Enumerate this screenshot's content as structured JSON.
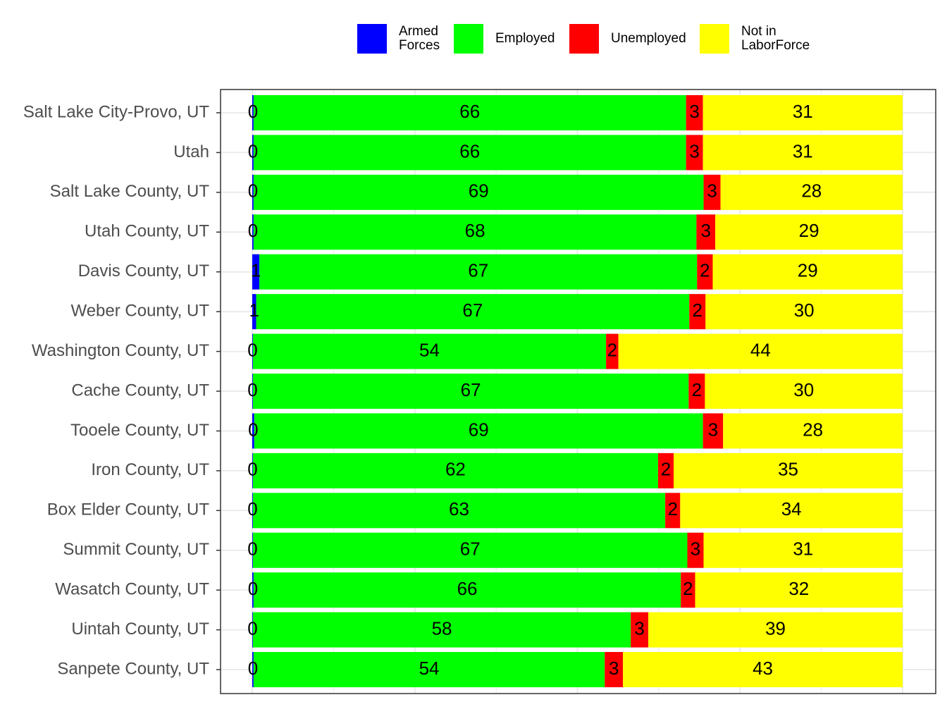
{
  "chart_data": {
    "type": "bar",
    "orientation": "horizontal",
    "stacked": true,
    "normalized_percent": true,
    "title": "",
    "xlabel": "",
    "ylabel": "",
    "xlim": [
      0,
      100
    ],
    "grid": true,
    "legend_position": "top",
    "categories": [
      "Salt Lake City-Provo, UT",
      "Utah",
      "Salt Lake County, UT",
      "Utah County, UT",
      "Davis County, UT",
      "Weber County, UT",
      "Washington County, UT",
      "Cache County, UT",
      "Tooele County, UT",
      "Iron County, UT",
      "Box Elder County, UT",
      "Summit County, UT",
      "Wasatch County, UT",
      "Uintah County, UT",
      "Sanpete County, UT"
    ],
    "series": [
      {
        "name": "Armed Forces",
        "legend_lines": [
          "Armed",
          "Forces"
        ],
        "color": "#0000ff",
        "values": [
          0.2,
          0.2,
          0.2,
          0.2,
          1.1,
          0.6,
          0.1,
          0.1,
          0.3,
          0.1,
          0.1,
          0.1,
          0.2,
          0.1,
          0.2
        ],
        "labels": [
          "0",
          "0",
          "0",
          "0",
          "1",
          "1",
          "0",
          "0",
          "0",
          "0",
          "0",
          "0",
          "0",
          "0",
          "0"
        ]
      },
      {
        "name": "Employed",
        "legend_lines": [
          "Employed"
        ],
        "color": "#00ff00",
        "values": [
          66.5,
          66.5,
          69.2,
          68.1,
          67.3,
          66.6,
          54.3,
          67.0,
          69.0,
          62.3,
          63.4,
          66.8,
          65.7,
          58.1,
          54.0
        ],
        "labels": [
          "66",
          "66",
          "69",
          "68",
          "67",
          "67",
          "54",
          "67",
          "69",
          "62",
          "63",
          "67",
          "66",
          "58",
          "54"
        ]
      },
      {
        "name": "Unemployed",
        "legend_lines": [
          "Unemployed"
        ],
        "color": "#ff0000",
        "values": [
          2.6,
          2.6,
          2.6,
          2.9,
          2.4,
          2.5,
          1.9,
          2.5,
          3.1,
          2.4,
          2.3,
          2.5,
          2.2,
          2.7,
          2.8
        ],
        "labels": [
          "3",
          "3",
          "3",
          "3",
          "2",
          "2",
          "2",
          "2",
          "3",
          "2",
          "2",
          "3",
          "2",
          "3",
          "3"
        ]
      },
      {
        "name": "Not in LaborForce",
        "legend_lines": [
          "Not in",
          "LaborForce"
        ],
        "color": "#ffff00",
        "values": [
          30.7,
          30.7,
          28.0,
          28.8,
          29.2,
          30.3,
          43.7,
          30.4,
          27.6,
          35.2,
          34.2,
          30.6,
          31.9,
          39.1,
          43.0
        ],
        "labels": [
          "31",
          "31",
          "28",
          "29",
          "29",
          "30",
          "44",
          "30",
          "28",
          "35",
          "34",
          "31",
          "32",
          "39",
          "43"
        ]
      }
    ]
  }
}
